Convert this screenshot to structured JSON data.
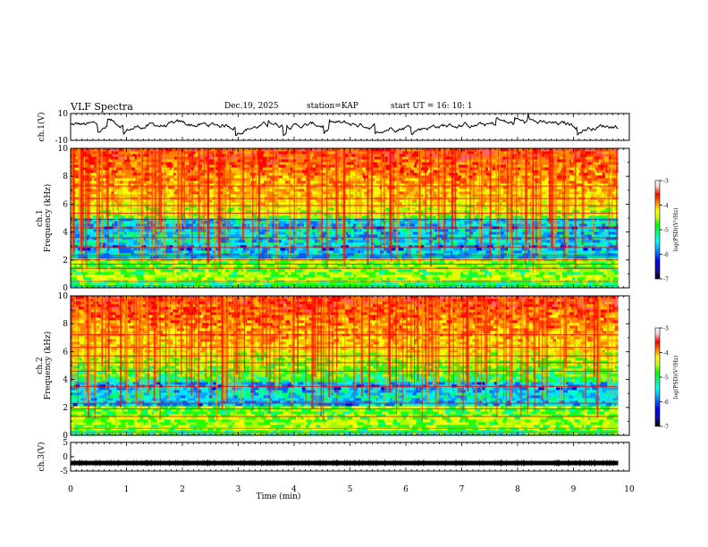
{
  "header": {
    "title": "VLF Spectra",
    "date": "Dec.19, 2025",
    "station": "station=KAP",
    "start_ut": "start UT =  16: 10: 1"
  },
  "chart_data": {
    "type": "heatmap",
    "title": "VLF Spectra",
    "xlabel": "Time (min)",
    "x_ticks": [
      "0",
      "1",
      "2",
      "3",
      "4",
      "5",
      "6",
      "7",
      "8",
      "9",
      "10"
    ],
    "xlim": [
      0,
      10
    ],
    "data_end_min": 9.8,
    "panels": [
      {
        "kind": "waveform",
        "ylabel": "ch.1(V)",
        "ylim": [
          -10,
          10
        ],
        "y_ticks": [
          "10",
          "-10"
        ],
        "description": "noisy voltage trace mostly between about -2 and +5 V"
      },
      {
        "kind": "spectrogram",
        "ylabel_lines": [
          "ch.1",
          "Frequency (kHz)"
        ],
        "ylim": [
          0,
          10
        ],
        "y_ticks": [
          "0",
          "2",
          "4",
          "6",
          "8",
          "10"
        ],
        "colorbar": {
          "label": "log(PSD)(V²/Hz)",
          "range": [
            -7,
            -3
          ],
          "ticks": [
            "-3",
            "-4",
            "-5",
            "-6",
            "-7"
          ]
        },
        "quiet_band_khz": [
          2.3,
          5.0
        ],
        "quiet_band_2_khz": [
          2.3,
          5.0
        ],
        "bands_khz": [
          [
            0.0,
            0.3,
            "green"
          ],
          [
            0.3,
            2.2,
            "green"
          ],
          [
            2.2,
            5.0,
            "cyan-blue"
          ],
          [
            5.0,
            10.0,
            "yellow-red"
          ]
        ],
        "line_freqs_khz": [
          0.15,
          0.45,
          1.4,
          1.7,
          2.0,
          2.2,
          2.35,
          2.9,
          3.6,
          4.3,
          4.9,
          5.35,
          5.9,
          6.4,
          7.3
        ]
      },
      {
        "kind": "spectrogram",
        "ylabel_lines": [
          "ch.2",
          "Frequency (kHz)"
        ],
        "ylim": [
          0,
          10
        ],
        "y_ticks": [
          "0",
          "2",
          "4",
          "6",
          "8",
          "10"
        ],
        "colorbar": {
          "label": "log(PSD)(V²/Hz)",
          "range": [
            -7,
            -3
          ],
          "ticks": [
            "-3",
            "-4",
            "-5",
            "-6",
            "-7"
          ]
        },
        "quiet_band_khz": [
          2.0,
          3.9
        ],
        "quiet_band_2_khz": [
          2.2,
          4.3
        ],
        "bands_khz": [
          [
            0.0,
            0.3,
            "green"
          ],
          [
            0.3,
            2.0,
            "green"
          ],
          [
            2.0,
            4.3,
            "cyan-blue"
          ],
          [
            4.3,
            10.0,
            "yellow-red"
          ]
        ],
        "line_freqs_khz": [
          0.2,
          0.5,
          1.35,
          1.9,
          2.3,
          3.5,
          4.6,
          5.2,
          5.7,
          6.3,
          7.2
        ]
      },
      {
        "kind": "waveform",
        "ylabel": "ch.3(V)",
        "ylim": [
          -5,
          5
        ],
        "y_ticks": [
          "5",
          "0",
          "-5"
        ],
        "constant_value_v": -2.2,
        "description": "flat thick trace near -2 V"
      }
    ],
    "colormap": [
      "#000000",
      "#1010a0",
      "#0000ff",
      "#00a0ff",
      "#00ffff",
      "#00ff80",
      "#00ff00",
      "#c0ff00",
      "#ffff00",
      "#ff8000",
      "#ff0000",
      "#ffd0d0",
      "#ffffff"
    ]
  }
}
